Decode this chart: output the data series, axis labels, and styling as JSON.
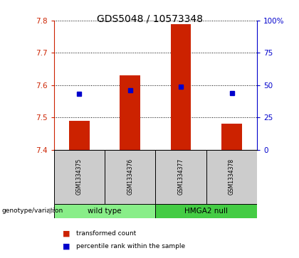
{
  "title": "GDS5048 / 10573348",
  "samples": [
    "GSM1334375",
    "GSM1334376",
    "GSM1334377",
    "GSM1334378"
  ],
  "bar_bottoms": [
    7.4,
    7.4,
    7.4,
    7.4
  ],
  "bar_tops": [
    7.49,
    7.63,
    7.79,
    7.48
  ],
  "percentile_values": [
    7.572,
    7.585,
    7.596,
    7.576
  ],
  "ylim_left": [
    7.4,
    7.8
  ],
  "ylim_right": [
    0,
    100
  ],
  "yticks_left": [
    7.4,
    7.5,
    7.6,
    7.7,
    7.8
  ],
  "yticks_right": [
    0,
    25,
    50,
    75,
    100
  ],
  "ytick_labels_right": [
    "0",
    "25",
    "50",
    "75",
    "100%"
  ],
  "bar_color": "#cc2200",
  "point_color": "#0000cc",
  "groups": [
    {
      "label": "wild type",
      "indices": [
        0,
        1
      ],
      "color": "#88ee88"
    },
    {
      "label": "HMGA2 null",
      "indices": [
        2,
        3
      ],
      "color": "#44cc44"
    }
  ],
  "genotype_label": "genotype/variation",
  "legend_items": [
    {
      "color": "#cc2200",
      "label": "transformed count"
    },
    {
      "color": "#0000cc",
      "label": "percentile rank within the sample"
    }
  ],
  "left_color": "#cc2200",
  "right_color": "#0000cc",
  "bg_sample": "#cccccc",
  "bar_width": 0.4
}
